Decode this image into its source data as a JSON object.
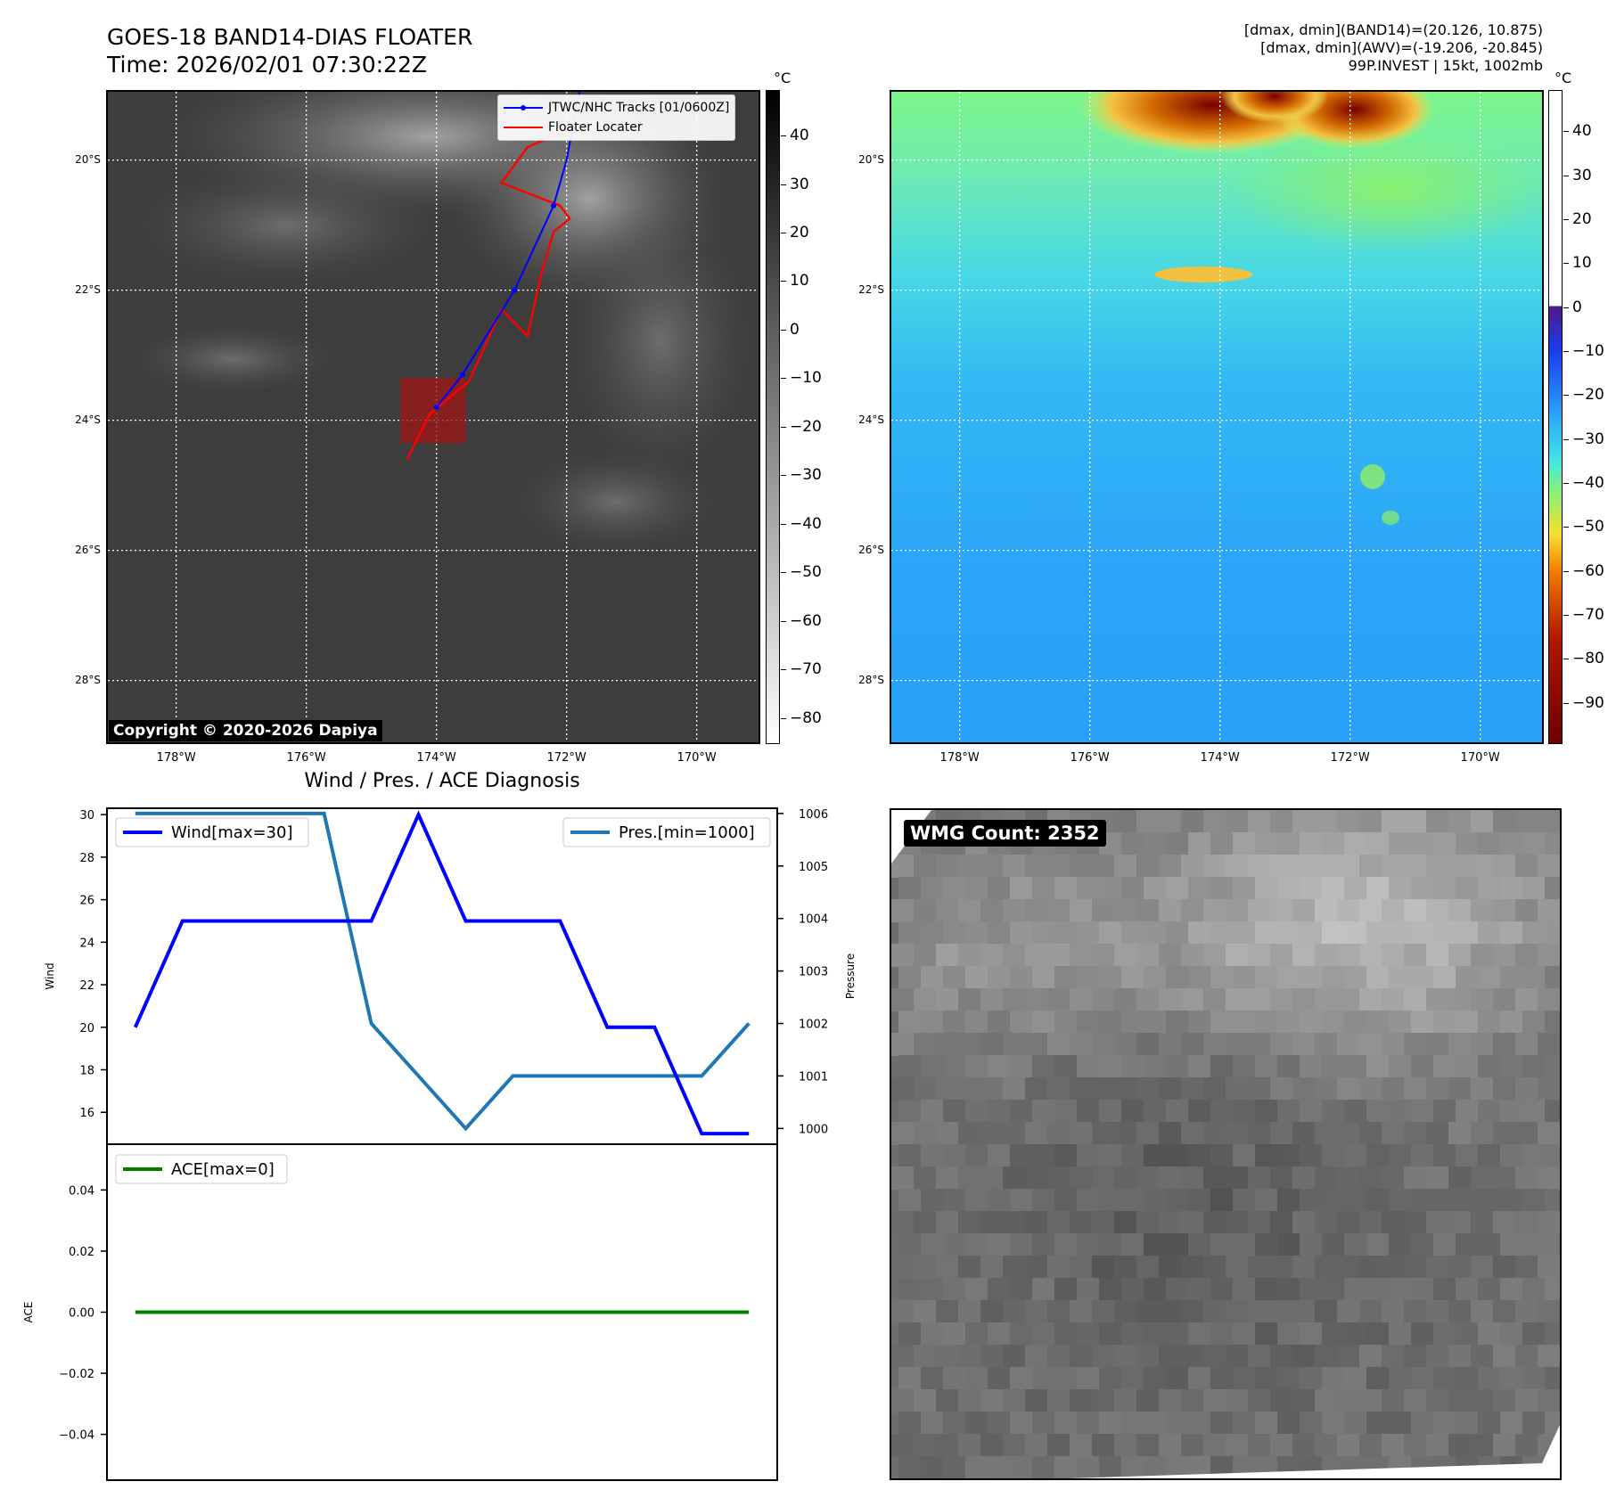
{
  "header": {
    "title_line1": "GOES-18 BAND14-DIAS FLOATER",
    "title_line2": "Time: 2026/02/01 07:30:22Z",
    "stats_line1": "[dmax, dmin](BAND14)=(20.126, 10.875)",
    "stats_line2": "[dmax, dmin](AWV)=(-19.206, -20.845)",
    "stats_line3": "99P.INVEST | 15kt, 1002mb"
  },
  "map": {
    "lat_labels": [
      "20°S",
      "22°S",
      "24°S",
      "26°S",
      "28°S"
    ],
    "lon_labels": [
      "178°W",
      "176°W",
      "174°W",
      "172°W",
      "170°W"
    ],
    "lon_range": [
      -179.05,
      -169.05
    ],
    "lat_range": [
      -28.95,
      -18.95
    ],
    "copyright": "Copyright © 2020-2026 Dapiya",
    "legend": {
      "track_label": "JTWC/NHC Tracks [01/0600Z]",
      "locater_label": "Floater Locater",
      "track_color": "#0000ff",
      "locater_color": "#ff0000"
    },
    "jtwc_track": [
      {
        "lon": -174.0,
        "lat": -23.8
      },
      {
        "lon": -173.6,
        "lat": -23.3
      },
      {
        "lon": -172.8,
        "lat": -22.0
      },
      {
        "lon": -172.2,
        "lat": -20.7
      },
      {
        "lon": -172.0,
        "lat": -20.0
      },
      {
        "lon": -171.8,
        "lat": -18.95
      }
    ],
    "floater_track": [
      {
        "lon": -174.45,
        "lat": -24.6
      },
      {
        "lon": -174.1,
        "lat": -23.9
      },
      {
        "lon": -173.5,
        "lat": -23.4
      },
      {
        "lon": -173.0,
        "lat": -22.3
      },
      {
        "lon": -172.6,
        "lat": -22.7
      },
      {
        "lon": -172.4,
        "lat": -21.8
      },
      {
        "lon": -172.2,
        "lat": -21.1
      },
      {
        "lon": -171.95,
        "lat": -20.9
      },
      {
        "lon": -172.1,
        "lat": -20.7
      },
      {
        "lon": -173.0,
        "lat": -20.35
      },
      {
        "lon": -172.6,
        "lat": -19.8
      },
      {
        "lon": -171.9,
        "lat": -19.5
      }
    ],
    "locater_box": {
      "lon_min": -174.55,
      "lon_max": -173.55,
      "lat_min": -24.35,
      "lat_max": -23.35
    }
  },
  "colorbar_left": {
    "unit": "°C",
    "ticks": [
      "40",
      "30",
      "20",
      "10",
      "0",
      "−10",
      "−20",
      "−30",
      "−40",
      "−50",
      "−60",
      "−70",
      "−80"
    ],
    "range": [
      -85,
      49
    ]
  },
  "colorbar_right": {
    "unit": "°C",
    "ticks": [
      "40",
      "30",
      "20",
      "10",
      "0",
      "−10",
      "−20",
      "−30",
      "−40",
      "−50",
      "−60",
      "−70",
      "−80",
      "−90"
    ],
    "range": [
      -99,
      49
    ]
  },
  "diagnosis": {
    "title": "Wind / Pres. / ACE Diagnosis",
    "wind_label": "Wind",
    "pressure_label": "Pressure",
    "ace_label": "ACE",
    "wind_legend": "Wind[max=30]",
    "pres_legend": "Pres.[min=1000]",
    "ace_legend": "ACE[max=0]",
    "wind_color": "#0000ff",
    "pres_color": "#1f77b4",
    "ace_color": "#008000"
  },
  "chart_data": {
    "type": "line",
    "x": [
      0,
      1,
      2,
      3,
      4,
      5,
      6,
      7,
      8,
      9,
      10,
      11,
      12,
      13
    ],
    "series": [
      {
        "name": "Wind[max=30]",
        "axis": "left",
        "values": [
          20,
          25,
          25,
          25,
          25,
          25,
          30,
          25,
          25,
          25,
          20,
          20,
          15,
          15
        ]
      },
      {
        "name": "Pres.[min=1000]",
        "axis": "right",
        "values": [
          1006,
          1006,
          1006,
          1006,
          1006,
          1002,
          1001,
          1000,
          1001,
          1001,
          1001,
          1001,
          1001,
          1002
        ]
      },
      {
        "name": "ACE[max=0]",
        "axis": "ace",
        "values": [
          0,
          0,
          0,
          0,
          0,
          0,
          0,
          0,
          0,
          0,
          0,
          0,
          0,
          0
        ]
      }
    ],
    "wind_ylim": [
      14.5,
      30.3
    ],
    "wind_ticks": [
      "16",
      "18",
      "20",
      "22",
      "24",
      "26",
      "28",
      "30"
    ],
    "pres_ylim": [
      999.7,
      1006.1
    ],
    "pres_ticks": [
      "1000",
      "1001",
      "1002",
      "1003",
      "1004",
      "1005",
      "1006"
    ],
    "ace_ylim": [
      -0.055,
      0.055
    ],
    "ace_ticks": [
      "0.04",
      "0.02",
      "0.00",
      "−0.02",
      "−0.04"
    ]
  },
  "wmg": {
    "label": "WMG Count: 2352"
  }
}
